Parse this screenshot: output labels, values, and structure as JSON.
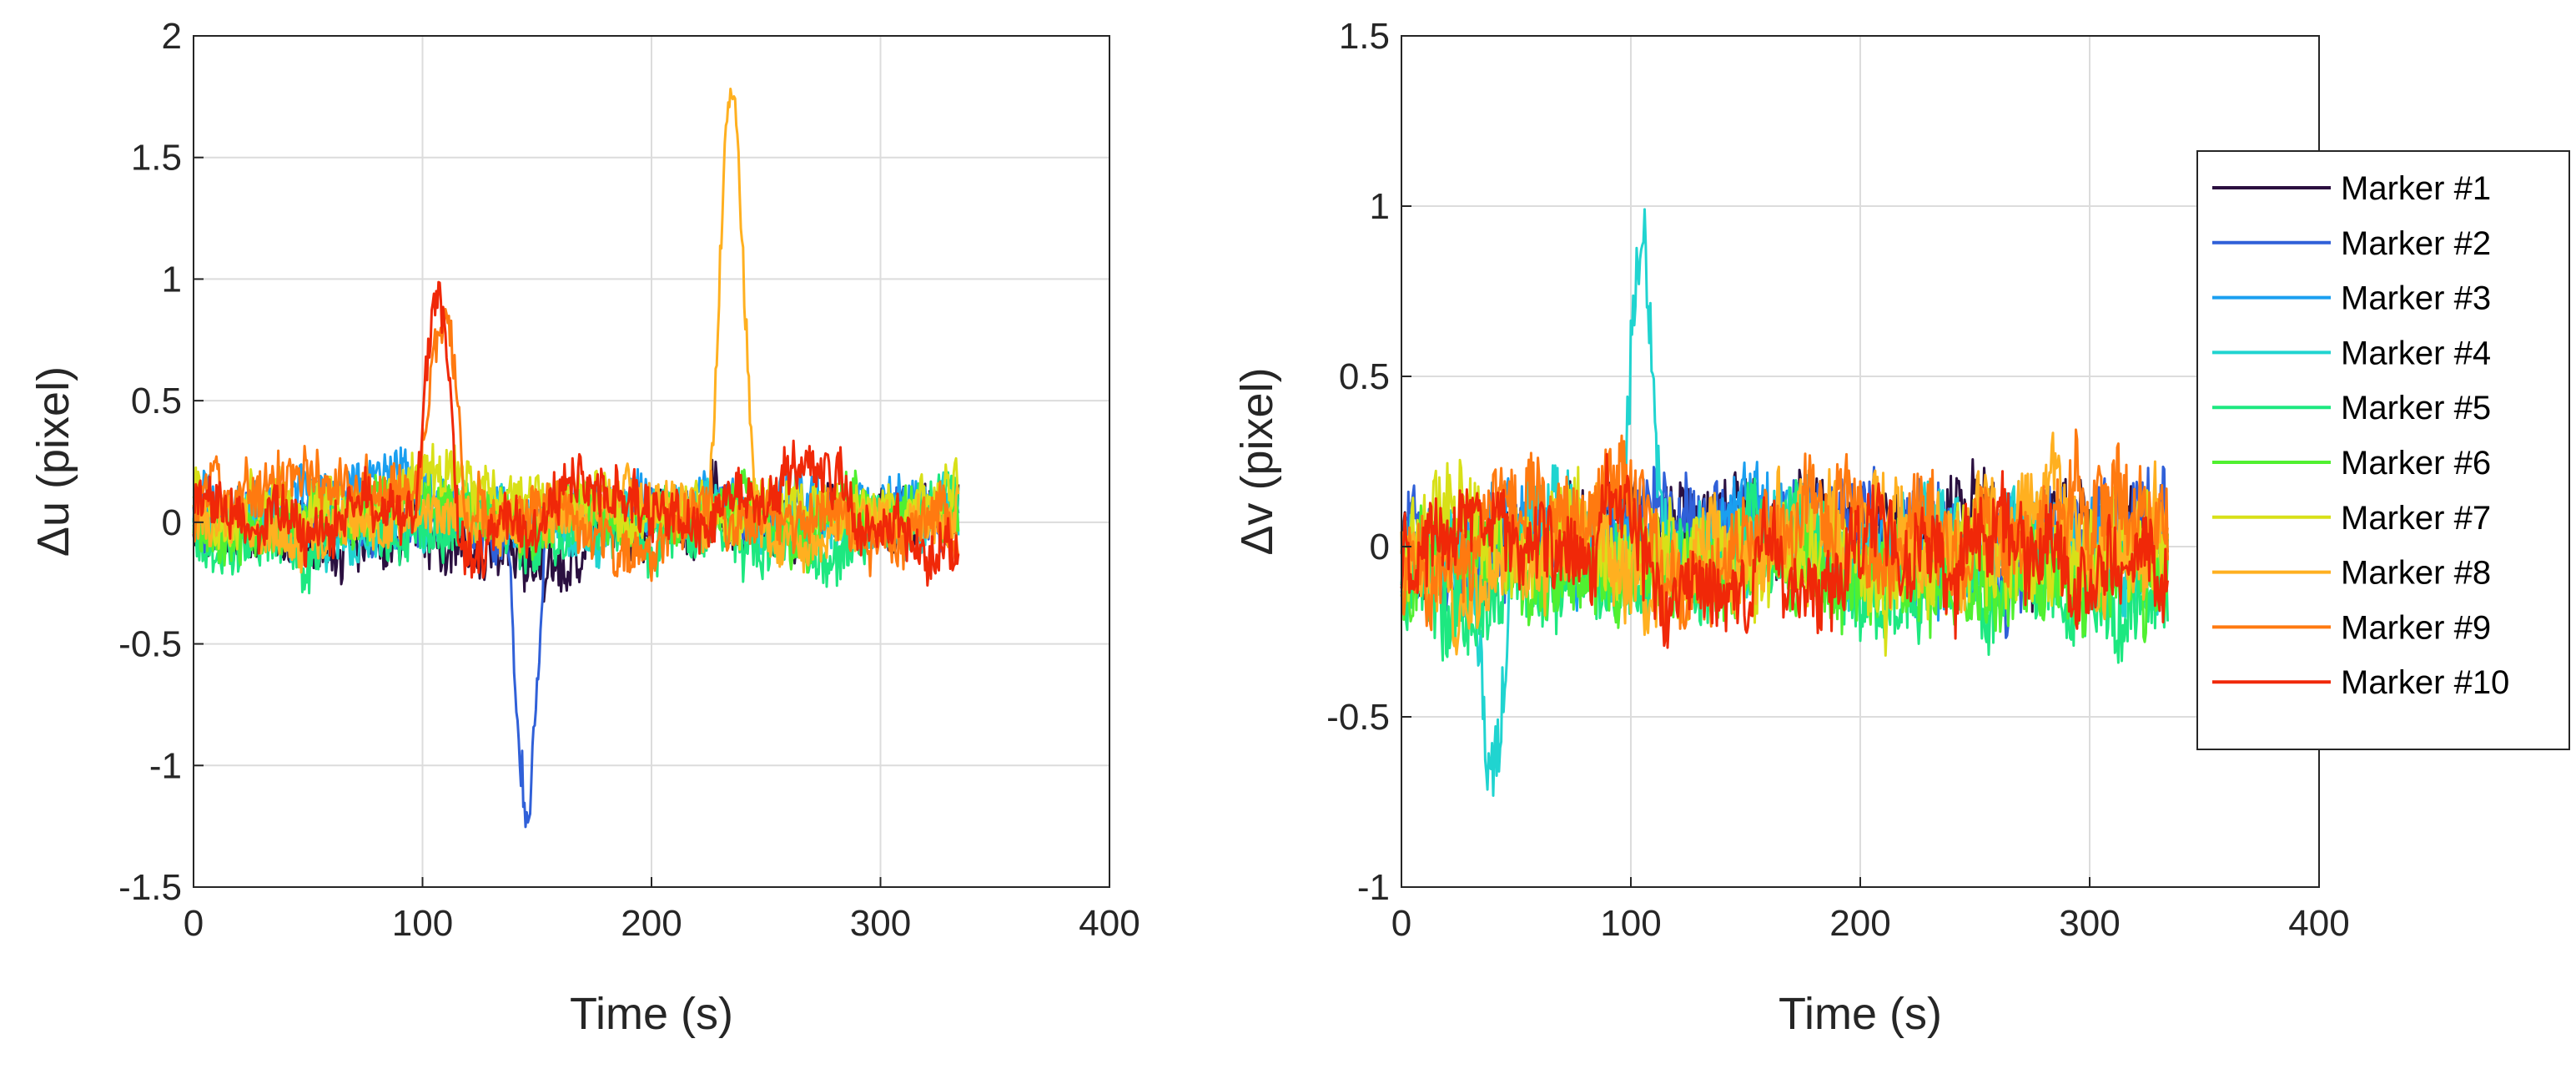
{
  "figure": {
    "background": "#ffffff"
  },
  "charts": [
    {
      "id": "du",
      "type": "line",
      "xlabel": "Time (s)",
      "ylabel": "Δu (pixel)",
      "xlim": [
        0,
        400
      ],
      "ylim": [
        -1.5,
        2
      ],
      "x_ticks": [
        0,
        100,
        200,
        300,
        400
      ],
      "x_tick_labels": [
        "0",
        "100",
        "200",
        "300",
        "400"
      ],
      "y_ticks": [
        -1.5,
        -1,
        -0.5,
        0,
        0.5,
        1,
        1.5,
        2
      ],
      "y_tick_labels": [
        "-1.5",
        "-1",
        "-0.5",
        "0",
        "0.5",
        "1",
        "1.5",
        "2"
      ],
      "grid": true,
      "time_range": [
        0,
        334
      ],
      "sample_step": 0.5,
      "series": [
        {
          "name": "Marker #1",
          "color": "#2b1040",
          "bias": -0.02,
          "noise": 0.11,
          "drift": 0.05,
          "events": [
            {
              "t0": 95,
              "t1": 210,
              "amp": -0.12
            },
            {
              "t0": 220,
              "t1": 235,
              "amp": 0.18
            }
          ]
        },
        {
          "name": "Marker #2",
          "color": "#3060d8",
          "bias": 0.02,
          "noise": 0.1,
          "drift": 0.04,
          "events": [
            {
              "t0": 136,
              "t1": 155,
              "amp": -1.15
            }
          ]
        },
        {
          "name": "Marker #3",
          "color": "#1a9ff0",
          "bias": 0.08,
          "noise": 0.1,
          "drift": 0.05,
          "events": []
        },
        {
          "name": "Marker #4",
          "color": "#20d4d0",
          "bias": 0.0,
          "noise": 0.1,
          "drift": 0.05,
          "events": []
        },
        {
          "name": "Marker #5",
          "color": "#1de880",
          "bias": -0.05,
          "noise": 0.11,
          "drift": 0.05,
          "events": [
            {
              "t0": 40,
              "t1": 60,
              "amp": -0.12
            }
          ]
        },
        {
          "name": "Marker #6",
          "color": "#50f030",
          "bias": 0.02,
          "noise": 0.1,
          "drift": 0.05,
          "events": []
        },
        {
          "name": "Marker #7",
          "color": "#d8e018",
          "bias": 0.1,
          "noise": 0.1,
          "drift": 0.05,
          "events": []
        },
        {
          "name": "Marker #8",
          "color": "#ffb020",
          "bias": 0.0,
          "noise": 0.09,
          "drift": 0.05,
          "events": [
            {
              "t0": 224,
              "t1": 246,
              "amp": 1.72
            }
          ]
        },
        {
          "name": "Marker #9",
          "color": "#ff7a10",
          "bias": 0.0,
          "noise": 0.1,
          "drift": 0.07,
          "events": [
            {
              "t0": 98,
              "t1": 120,
              "amp": 0.9
            },
            {
              "t0": 250,
              "t1": 300,
              "amp": 0.12
            }
          ]
        },
        {
          "name": "Marker #10",
          "color": "#f02808",
          "bias": 0.02,
          "noise": 0.1,
          "drift": 0.07,
          "events": [
            {
              "t0": 96,
              "t1": 118,
              "amp": 0.95
            },
            {
              "t0": 245,
              "t1": 290,
              "amp": 0.15
            }
          ]
        }
      ]
    },
    {
      "id": "dv",
      "type": "line",
      "xlabel": "Time (s)",
      "ylabel": "Δv (pixel)",
      "xlim": [
        0,
        400
      ],
      "ylim": [
        -1,
        1.5
      ],
      "x_ticks": [
        0,
        100,
        200,
        300,
        400
      ],
      "x_tick_labels": [
        "0",
        "100",
        "200",
        "300",
        "400"
      ],
      "y_ticks": [
        -1,
        -0.5,
        0,
        0.5,
        1,
        1.5
      ],
      "y_tick_labels": [
        "-1",
        "-0.5",
        "0",
        "0.5",
        "1",
        "1.5"
      ],
      "grid": true,
      "legend_position": "right-outside",
      "time_range": [
        0,
        334
      ],
      "sample_step": 0.5,
      "series": [
        {
          "name": "Marker #1",
          "color": "#2b1040",
          "bias": 0.02,
          "noise": 0.12,
          "drift": 0.05,
          "events": [
            {
              "t0": 160,
              "t1": 200,
              "amp": 0.12
            }
          ]
        },
        {
          "name": "Marker #2",
          "color": "#3060d8",
          "bias": 0.03,
          "noise": 0.12,
          "drift": 0.05,
          "events": [
            {
              "t0": 40,
              "t1": 70,
              "amp": 0.12
            }
          ]
        },
        {
          "name": "Marker #3",
          "color": "#1a9ff0",
          "bias": 0.0,
          "noise": 0.12,
          "drift": 0.05,
          "events": []
        },
        {
          "name": "Marker #4",
          "color": "#20d4d0",
          "bias": -0.02,
          "noise": 0.12,
          "drift": 0.05,
          "events": [
            {
              "t0": 30,
              "t1": 50,
              "amp": -0.68
            },
            {
              "t0": 95,
              "t1": 114,
              "amp": 1.0
            }
          ]
        },
        {
          "name": "Marker #5",
          "color": "#1de880",
          "bias": -0.08,
          "noise": 0.13,
          "drift": 0.05,
          "events": []
        },
        {
          "name": "Marker #6",
          "color": "#50f030",
          "bias": -0.06,
          "noise": 0.12,
          "drift": 0.05,
          "events": []
        },
        {
          "name": "Marker #7",
          "color": "#d8e018",
          "bias": -0.04,
          "noise": 0.13,
          "drift": 0.06,
          "events": []
        },
        {
          "name": "Marker #8",
          "color": "#ffb020",
          "bias": 0.0,
          "noise": 0.12,
          "drift": 0.08,
          "events": [
            {
              "t0": 180,
              "t1": 240,
              "amp": 0.1
            },
            {
              "t0": 268,
              "t1": 300,
              "amp": 0.12
            }
          ]
        },
        {
          "name": "Marker #9",
          "color": "#ff7a10",
          "bias": -0.02,
          "noise": 0.12,
          "drift": 0.08,
          "events": [
            {
              "t0": 185,
              "t1": 245,
              "amp": 0.12
            }
          ]
        },
        {
          "name": "Marker #10",
          "color": "#f02808",
          "bias": -0.04,
          "noise": 0.11,
          "drift": 0.08,
          "events": [
            {
              "t0": 190,
              "t1": 240,
              "amp": 0.1
            },
            {
              "t0": 140,
              "t1": 160,
              "amp": -0.1
            }
          ]
        }
      ]
    }
  ],
  "legend": {
    "entries": [
      "Marker #1",
      "Marker #2",
      "Marker #3",
      "Marker #4",
      "Marker #5",
      "Marker #6",
      "Marker #7",
      "Marker #8",
      "Marker #9",
      "Marker #10"
    ],
    "colors": [
      "#2b1040",
      "#3060d8",
      "#1a9ff0",
      "#20d4d0",
      "#1de880",
      "#50f030",
      "#d8e018",
      "#ffb020",
      "#ff7a10",
      "#f02808"
    ]
  },
  "chart_data": [
    {
      "type": "line",
      "title": "",
      "xlabel": "Time (s)",
      "ylabel": "Δu (pixel)",
      "xlim": [
        0,
        400
      ],
      "ylim": [
        -1.5,
        2
      ],
      "series_summary": [
        {
          "name": "Marker #1",
          "baseline": 0,
          "notable": "noise about ±0.35"
        },
        {
          "name": "Marker #2",
          "baseline": 0,
          "notable": "dip to about -1.15 near t=145"
        },
        {
          "name": "Marker #3",
          "baseline": 0.05,
          "notable": "noise about ±0.3"
        },
        {
          "name": "Marker #4",
          "baseline": 0,
          "notable": "noise"
        },
        {
          "name": "Marker #5",
          "baseline": -0.05,
          "notable": "noise"
        },
        {
          "name": "Marker #6",
          "baseline": 0,
          "notable": "noise"
        },
        {
          "name": "Marker #7",
          "baseline": 0.1,
          "notable": "noise"
        },
        {
          "name": "Marker #8",
          "baseline": 0,
          "notable": "peak about 1.75 near t=235"
        },
        {
          "name": "Marker #9",
          "baseline": 0,
          "notable": "peak about 1.05 near t=110"
        },
        {
          "name": "Marker #10",
          "baseline": 0,
          "notable": "peak about 1.05 near t=105"
        }
      ]
    },
    {
      "type": "line",
      "title": "",
      "xlabel": "Time (s)",
      "ylabel": "Δv (pixel)",
      "xlim": [
        0,
        400
      ],
      "ylim": [
        -1,
        1.5
      ],
      "series_summary": [
        {
          "name": "Marker #4",
          "baseline": 0,
          "notable": "dip about -0.72 near t=40, peak about 1.05 near t=104"
        },
        {
          "name": "Marker #1",
          "baseline": 0,
          "notable": "noise about ±0.3"
        },
        {
          "name": "Marker #10",
          "baseline": -0.05,
          "notable": "noise about ±0.35"
        }
      ]
    }
  ]
}
